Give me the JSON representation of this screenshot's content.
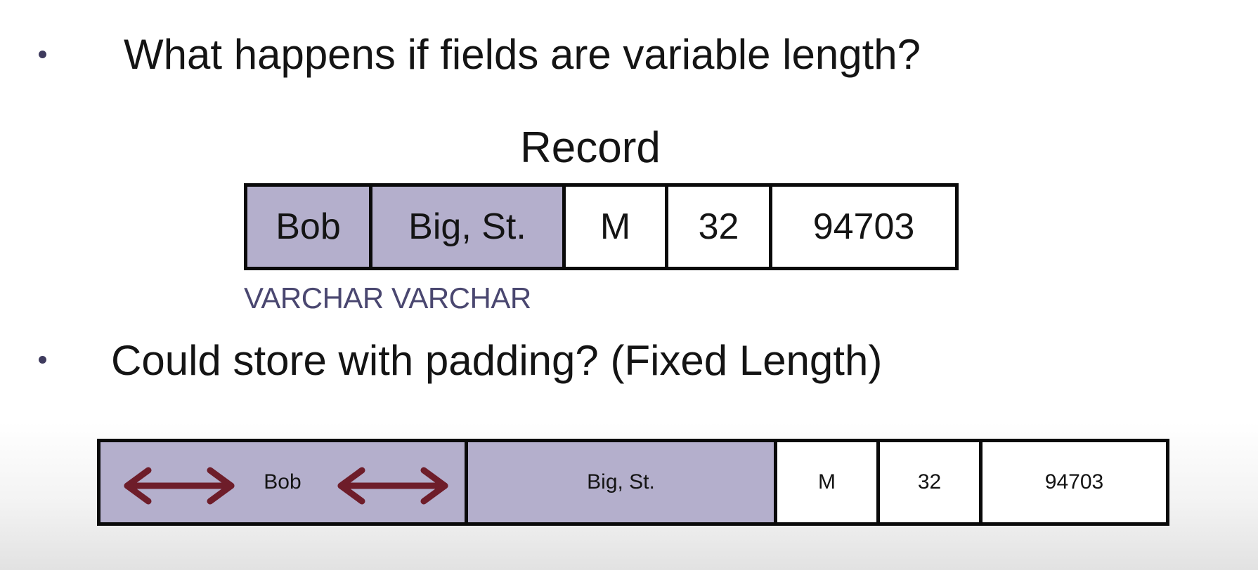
{
  "bullets": [
    {
      "text": "What happens if fields are variable length?"
    },
    {
      "text": "Could store with padding? (Fixed Length)"
    }
  ],
  "record": {
    "title": "Record",
    "fields": [
      "Bob",
      "Big, St.",
      "M",
      "32",
      "94703"
    ],
    "type_labels": "VARCHAR VARCHAR"
  },
  "padded_record": {
    "fields": [
      "Bob",
      "Big, St.",
      "M",
      "32",
      "94703"
    ]
  },
  "colors": {
    "varchar_fill": "#b4afcc",
    "arrow": "#6e1d2a",
    "type_label": "#4a4770"
  },
  "icons": {
    "padding_arrows": "double-headed-arrow-icon"
  }
}
